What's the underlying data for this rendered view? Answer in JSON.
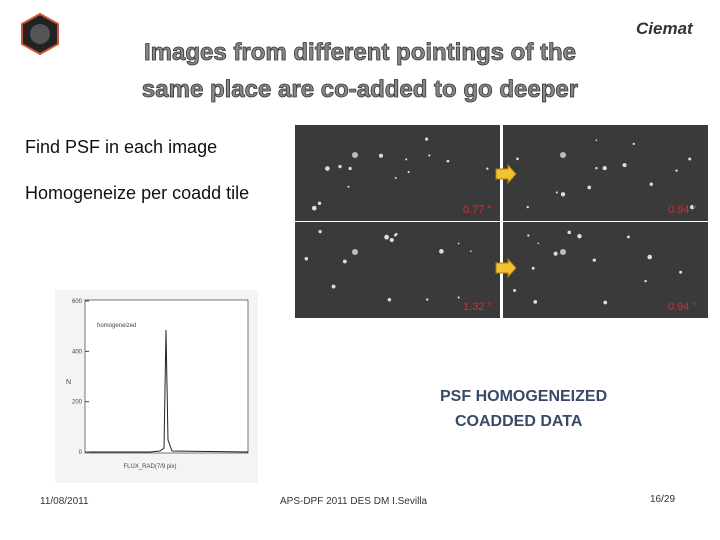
{
  "header": {
    "logo": "Ciemat",
    "title": [
      "Images from different pointings of the",
      "same place are co-added to go deeper"
    ]
  },
  "bullets": [
    "Find PSF in each image",
    "Homogeneize per coadd tile"
  ],
  "images": {
    "labels": [
      "0.77 ”",
      "0.94 ”",
      "1.32 ”",
      "0.94 ”"
    ]
  },
  "caption": [
    "PSF HOMOGENEIZED",
    "COADDED DATA"
  ],
  "plot": {
    "legend": "homogeneized",
    "ylabel": "N",
    "xlabel": "FLUX_RAD(7/9 pix)",
    "ylim": [
      0,
      600
    ],
    "yticks": [
      0,
      200,
      400,
      600
    ]
  },
  "footer": {
    "date": "11/08/2011",
    "event": "APS-DPF 2011 DES DM I.Sevilla",
    "page": "16/29"
  }
}
